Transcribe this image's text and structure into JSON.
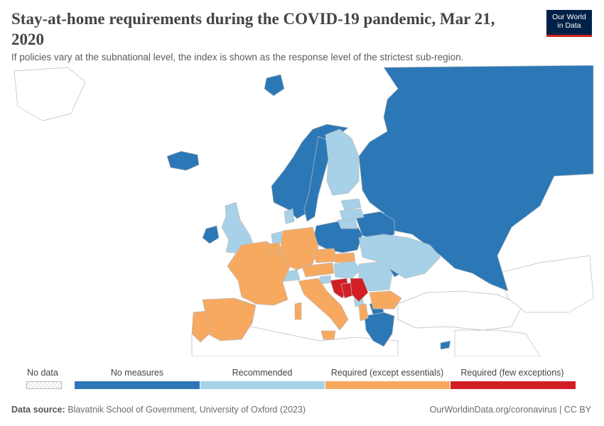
{
  "header": {
    "title": "Stay-at-home requirements during the COVID-19 pandemic, Mar 21, 2020",
    "subtitle": "If policies vary at the subnational level, the index is shown as the response level of the strictest sub-region.",
    "logo_line1": "Our World",
    "logo_line2": "in Data"
  },
  "colors": {
    "no_data": "#ffffff",
    "no_measures": "#2c78b7",
    "recommended": "#a6d1e8",
    "required_except_essentials": "#f7a95f",
    "required_few_exceptions": "#d21f26",
    "border": "#bbbbbb"
  },
  "map_data": {
    "region": "Europe",
    "date": "Mar 21, 2020",
    "categories": [
      "No data",
      "No measures",
      "Recommended",
      "Required (except essentials)",
      "Required (few exceptions)"
    ],
    "countries": {
      "No measures": [
        "Iceland",
        "Norway",
        "Sweden",
        "Ireland",
        "Poland",
        "Belarus",
        "Russia",
        "Moldova",
        "North Macedonia",
        "Greece",
        "Cyprus"
      ],
      "Recommended": [
        "Finland",
        "United Kingdom",
        "Estonia",
        "Latvia",
        "Lithuania",
        "Denmark",
        "Netherlands",
        "Switzerland",
        "Hungary",
        "Ukraine",
        "Romania",
        "Slovenia",
        "Montenegro"
      ],
      "Required (except essentials)": [
        "France",
        "Spain",
        "Portugal",
        "Italy",
        "Germany",
        "Belgium",
        "Austria",
        "Czechia",
        "Slovakia",
        "Bulgaria",
        "Albania"
      ],
      "Required (few exceptions)": [
        "Croatia",
        "Bosnia and Herzegovina",
        "Serbia"
      ]
    }
  },
  "legend": {
    "no_data": "No data",
    "items": [
      "No measures",
      "Recommended",
      "Required (except essentials)",
      "Required (few exceptions)"
    ]
  },
  "footer": {
    "source_label": "Data source:",
    "source_text": "Blavatnik School of Government, University of Oxford (2023)",
    "right": "OurWorldinData.org/coronavirus | CC BY"
  }
}
